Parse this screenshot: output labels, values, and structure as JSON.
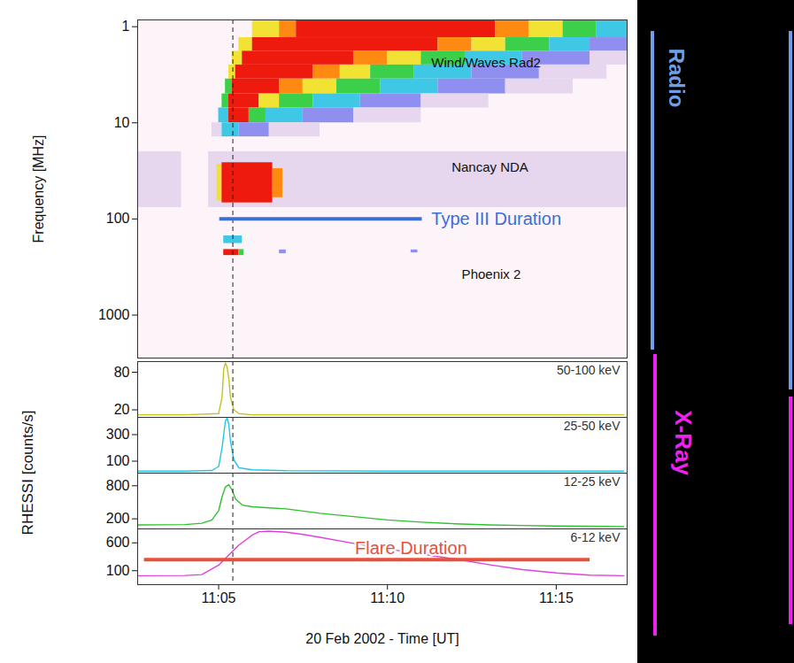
{
  "chart_data": {
    "type": "stacked_panels",
    "xlabel": "20 Feb 2002 - Time [UT]",
    "xlim": [
      2.6,
      17.1
    ],
    "xticks": [
      {
        "value": 5,
        "label": "11:05"
      },
      {
        "value": 10,
        "label": "11:10"
      },
      {
        "value": 15,
        "label": "11:15"
      }
    ],
    "vline": 5.42,
    "group_ylabel": "RHESSI [counts/s]",
    "group_labels": [
      {
        "text": "Radio",
        "color": "#6f9ee8"
      },
      {
        "text": "X-Ray",
        "color": "#ee22ee"
      }
    ],
    "panels": [
      {
        "type": "spectrogram",
        "ylabel": "Frequency [MHz]",
        "log": "y",
        "ylim": [
          0.85,
          2800
        ],
        "yticks": [
          1,
          10,
          100,
          1000
        ],
        "colors": [
          "#e6d6ee",
          "#8f8ff0",
          "#3ec8e6",
          "#3ccf4a",
          "#f2e234",
          "#ff8a12",
          "#ee1a0e"
        ],
        "cells": [
          [
            6.0,
            6.8,
            0.85,
            1.3,
            5
          ],
          [
            6.8,
            7.3,
            0.85,
            1.3,
            6
          ],
          [
            7.3,
            13.2,
            0.85,
            1.3,
            7
          ],
          [
            13.2,
            14.2,
            0.85,
            1.3,
            6
          ],
          [
            14.2,
            15.2,
            0.85,
            1.3,
            5
          ],
          [
            15.2,
            16.2,
            0.85,
            1.3,
            4
          ],
          [
            16.2,
            17.1,
            0.85,
            1.3,
            3
          ],
          [
            5.6,
            6.0,
            1.3,
            1.8,
            5
          ],
          [
            6.0,
            11.5,
            1.3,
            1.8,
            7
          ],
          [
            11.5,
            12.5,
            1.3,
            1.8,
            6
          ],
          [
            12.5,
            13.5,
            1.3,
            1.8,
            5
          ],
          [
            13.5,
            14.8,
            1.3,
            1.8,
            4
          ],
          [
            14.8,
            16,
            1.3,
            1.8,
            3
          ],
          [
            16,
            17.1,
            1.3,
            1.8,
            2
          ],
          [
            5.4,
            5.7,
            1.8,
            2.5,
            5
          ],
          [
            5.7,
            9.0,
            1.8,
            2.5,
            7
          ],
          [
            9.0,
            10,
            1.8,
            2.5,
            6
          ],
          [
            10,
            11,
            1.8,
            2.5,
            5
          ],
          [
            11,
            12.3,
            1.8,
            2.5,
            4
          ],
          [
            12.3,
            14,
            1.8,
            2.5,
            3
          ],
          [
            14,
            16,
            1.8,
            2.5,
            2
          ],
          [
            16,
            17.1,
            1.8,
            2.5,
            1
          ],
          [
            5.3,
            5.5,
            2.5,
            3.5,
            5
          ],
          [
            5.5,
            7.8,
            2.5,
            3.5,
            7
          ],
          [
            7.8,
            8.6,
            2.5,
            3.5,
            6
          ],
          [
            8.6,
            9.5,
            2.5,
            3.5,
            5
          ],
          [
            9.5,
            10.8,
            2.5,
            3.5,
            4
          ],
          [
            10.8,
            12.5,
            2.5,
            3.5,
            3
          ],
          [
            12.5,
            14.5,
            2.5,
            3.5,
            2
          ],
          [
            14.5,
            16.5,
            2.5,
            3.5,
            1
          ],
          [
            5.2,
            5.4,
            3.5,
            5,
            4
          ],
          [
            5.4,
            6.8,
            3.5,
            5,
            7
          ],
          [
            6.8,
            7.5,
            3.5,
            5,
            6
          ],
          [
            7.5,
            8.5,
            3.5,
            5,
            5
          ],
          [
            8.5,
            9.8,
            3.5,
            5,
            4
          ],
          [
            9.8,
            11.5,
            3.5,
            5,
            3
          ],
          [
            11.5,
            13.5,
            3.5,
            5,
            2
          ],
          [
            13.5,
            15.5,
            3.5,
            5,
            1
          ],
          [
            5.1,
            5.3,
            5,
            7,
            4
          ],
          [
            5.3,
            6.2,
            5,
            7,
            7
          ],
          [
            6.2,
            6.8,
            5,
            7,
            5
          ],
          [
            6.8,
            7.8,
            5,
            7,
            4
          ],
          [
            7.8,
            9.2,
            5,
            7,
            3
          ],
          [
            9.2,
            11,
            5,
            7,
            2
          ],
          [
            11,
            13,
            5,
            7,
            1
          ],
          [
            5.0,
            5.3,
            7,
            10,
            3
          ],
          [
            5.3,
            5.9,
            7,
            10,
            7
          ],
          [
            5.9,
            6.4,
            7,
            10,
            4
          ],
          [
            6.4,
            7.5,
            7,
            10,
            3
          ],
          [
            7.5,
            9,
            7,
            10,
            2
          ],
          [
            9,
            11,
            7,
            10,
            1
          ],
          [
            4.8,
            5.1,
            10,
            14,
            1
          ],
          [
            5.1,
            5.6,
            10,
            14,
            3
          ],
          [
            5.6,
            6.5,
            10,
            14,
            2
          ],
          [
            6.5,
            8,
            10,
            14,
            1
          ],
          [
            2.6,
            3.9,
            20,
            76,
            1
          ],
          [
            4.7,
            17.1,
            20,
            76,
            1
          ],
          [
            4.95,
            5.1,
            27,
            65,
            5
          ],
          [
            5.1,
            6.6,
            26,
            68,
            7
          ],
          [
            6.6,
            6.9,
            30,
            60,
            6
          ],
          [
            5.15,
            5.7,
            150,
            180,
            3
          ],
          [
            5.15,
            5.6,
            208,
            240,
            7
          ],
          [
            5.6,
            5.75,
            208,
            240,
            4
          ],
          [
            6.8,
            7.0,
            210,
            230,
            2
          ],
          [
            10.7,
            10.9,
            210,
            225,
            2
          ]
        ],
        "annotations": [
          {
            "text": "Wind/Waves Rad2",
            "x": 11.3,
            "y": 2.4
          },
          {
            "text": "Nancay NDA",
            "x": 11.9,
            "y": 29
          },
          {
            "text": "Phoenix 2",
            "x": 12.2,
            "y": 380
          }
        ],
        "duration": {
          "text": "Type III Duration",
          "start": 5.03,
          "end": 11.03,
          "y": 100,
          "color": "#3a6fd8",
          "text_x": 11.3,
          "text_y": 100
        }
      },
      {
        "type": "line",
        "name": "50-100 keV",
        "color": "#c8c020",
        "ylim": [
          8,
          97
        ],
        "yticks": [
          80,
          20
        ],
        "x": [
          2.6,
          4,
          5.0,
          5.1,
          5.15,
          5.2,
          5.25,
          5.3,
          5.35,
          5.45,
          5.6,
          6,
          8,
          12,
          17
        ],
        "values": [
          12,
          12,
          14,
          40,
          85,
          95,
          88,
          70,
          40,
          20,
          14,
          12,
          12,
          12,
          12
        ]
      },
      {
        "type": "line",
        "name": "25-50 keV",
        "color": "#20c8e8",
        "ylim": [
          10,
          430
        ],
        "yticks": [
          300,
          100
        ],
        "x": [
          2.6,
          4,
          4.8,
          5.0,
          5.1,
          5.2,
          5.25,
          5.3,
          5.35,
          5.45,
          5.6,
          6,
          7,
          10,
          17
        ],
        "values": [
          25,
          25,
          30,
          60,
          200,
          400,
          425,
          380,
          250,
          110,
          50,
          35,
          28,
          25,
          25
        ]
      },
      {
        "type": "line",
        "name": "12-25 keV",
        "color": "#30c030",
        "ylim": [
          17,
          1030
        ],
        "yticks": [
          800,
          200
        ],
        "x": [
          2.6,
          4,
          4.5,
          4.8,
          5.0,
          5.1,
          5.2,
          5.3,
          5.4,
          5.5,
          5.7,
          6,
          6.5,
          7,
          8,
          9,
          10,
          11,
          12,
          13,
          14,
          15,
          16,
          17
        ],
        "values": [
          90,
          95,
          120,
          180,
          350,
          600,
          780,
          820,
          720,
          560,
          450,
          420,
          400,
          380,
          300,
          240,
          180,
          140,
          110,
          90,
          80,
          70,
          65,
          60
        ]
      },
      {
        "type": "line",
        "name": "6-12 keV",
        "color": "#e040e0",
        "ylim": [
          -150,
          850
        ],
        "yticks": [
          600,
          100
        ],
        "x": [
          2.6,
          4,
          4.5,
          5,
          5.3,
          5.6,
          6,
          6.2,
          6.5,
          7,
          7.5,
          8,
          9,
          10,
          11,
          12,
          13,
          14,
          15,
          16,
          17
        ],
        "values": [
          10,
          15,
          30,
          200,
          380,
          560,
          740,
          800,
          810,
          790,
          750,
          700,
          590,
          490,
          400,
          310,
          210,
          120,
          60,
          20,
          10
        ],
        "duration": {
          "text": "Flare Duration",
          "start": 2.8,
          "end": 16.0,
          "y": 300,
          "color": "#e8503a",
          "text_x": 10.7,
          "text_y": 500
        }
      }
    ]
  }
}
